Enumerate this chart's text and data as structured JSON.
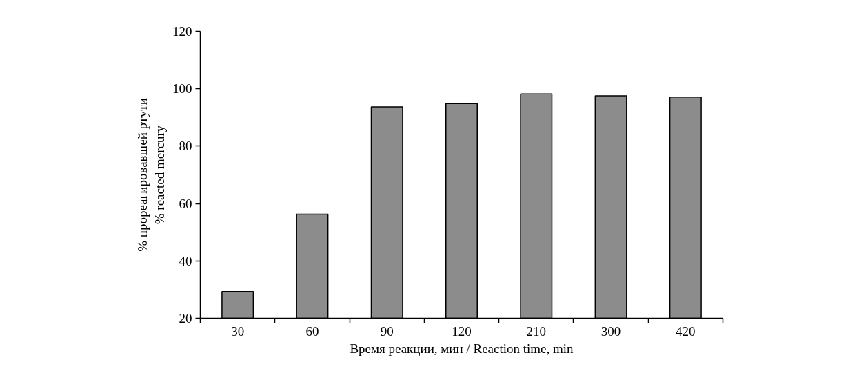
{
  "chart_data": {
    "type": "bar",
    "xlabel": "Время реакции, мин / Reaction time, min",
    "ylabel": "% прореагировавшей ртути\n% reacted mercury",
    "categories": [
      "30",
      "60",
      "90",
      "120",
      "210",
      "300",
      "420"
    ],
    "values": [
      29.3,
      56.3,
      93.7,
      94.8,
      98.2,
      97.5,
      97.1
    ],
    "color": "#8c8c8c",
    "ylim": [
      20,
      120
    ],
    "yticks": [
      20,
      40,
      60,
      80,
      100,
      120
    ],
    "grid": false
  }
}
